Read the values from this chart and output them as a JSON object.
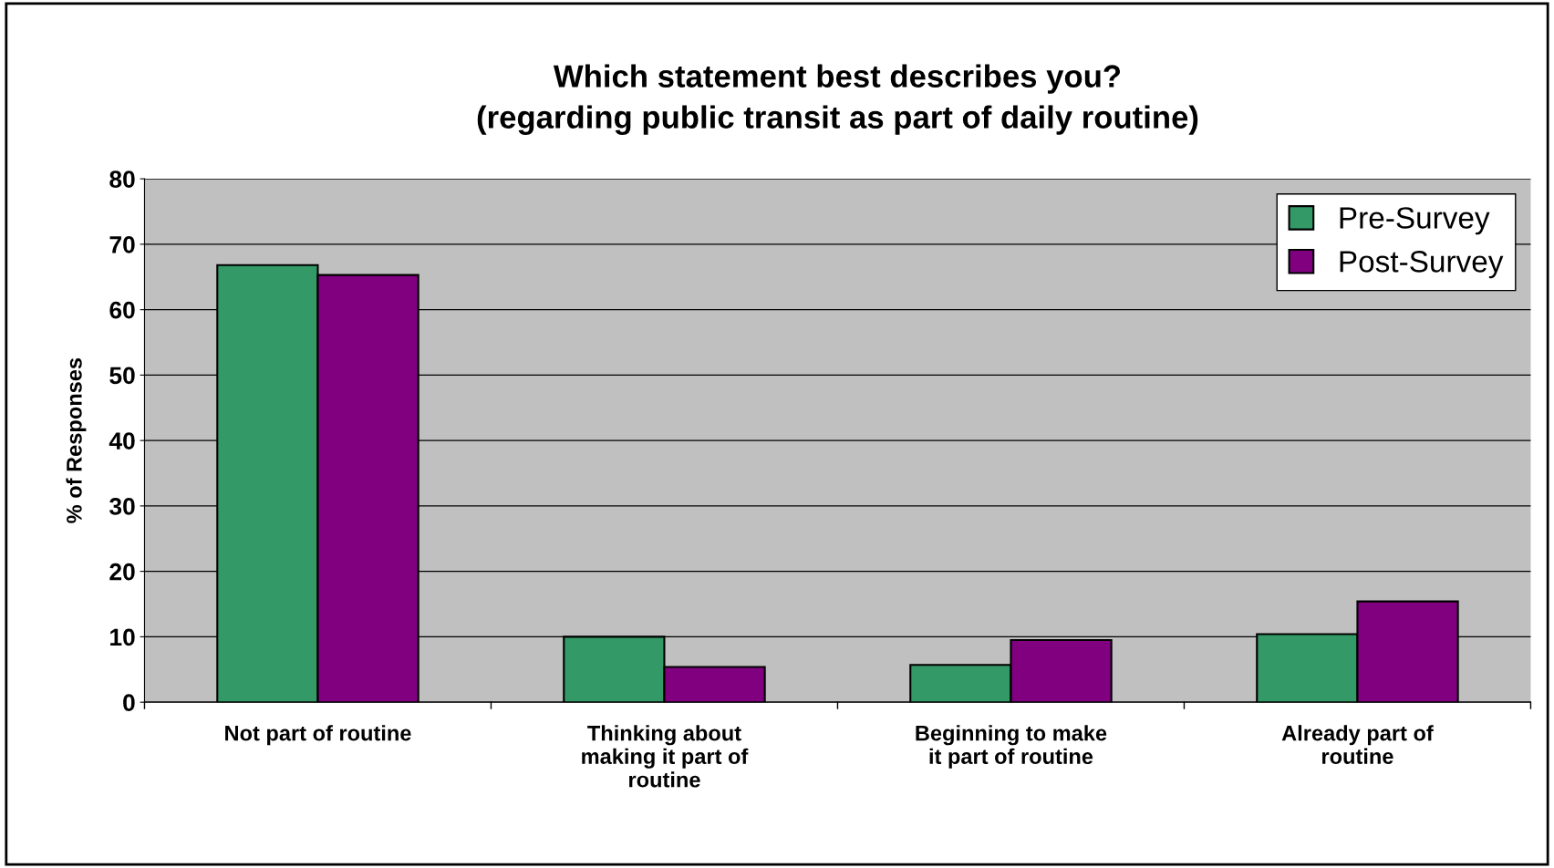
{
  "chart_data": {
    "type": "bar",
    "title": "Which statement best describes you?\n(regarding public transit as part of daily routine)",
    "ylabel": "% of Responses",
    "categories": [
      "Not part of routine",
      "Thinking about\nmaking it part of\nroutine",
      "Beginning to make\nit part of routine",
      "Already part of\nroutine"
    ],
    "series": [
      {
        "name": "Pre-Survey",
        "color": "#339966",
        "values": [
          66.8,
          10.0,
          5.7,
          10.4
        ]
      },
      {
        "name": "Post-Survey",
        "color": "#800080",
        "values": [
          65.3,
          5.4,
          9.5,
          15.4
        ]
      }
    ],
    "ylim": [
      0,
      80
    ],
    "yticks": [
      0,
      10,
      20,
      30,
      40,
      50,
      60,
      70,
      80
    ],
    "grid": "y",
    "legend": "top right"
  }
}
